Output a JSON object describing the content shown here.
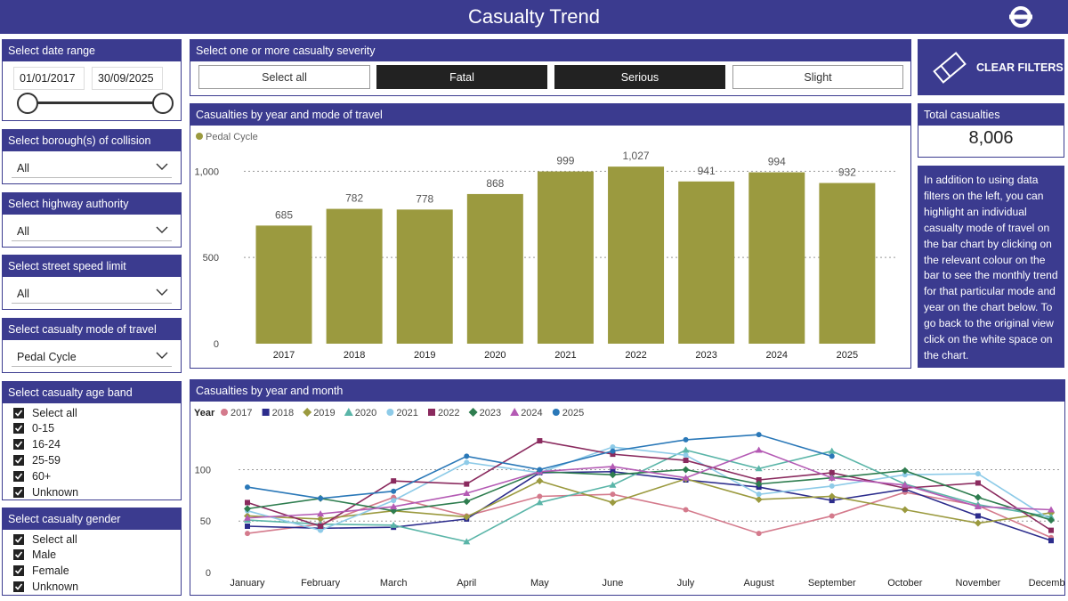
{
  "header": {
    "title": "Casualty Trend",
    "logo": "roundel-icon"
  },
  "filters": {
    "date_range": {
      "label": "Select date range",
      "start": "01/01/2017",
      "end": "30/09/2025"
    },
    "borough": {
      "label": "Select borough(s) of collision",
      "value": "All"
    },
    "highway": {
      "label": "Select highway authority",
      "value": "All"
    },
    "speed": {
      "label": "Select street speed limit",
      "value": "All"
    },
    "mode": {
      "label": "Select casualty mode of travel",
      "value": "Pedal Cycle"
    },
    "age": {
      "label": "Select casualty age band",
      "options": [
        "Select all",
        "0-15",
        "16-24",
        "25-59",
        "60+",
        "Unknown"
      ]
    },
    "gender": {
      "label": "Select casualty gender",
      "options": [
        "Select all",
        "Male",
        "Female",
        "Unknown"
      ]
    }
  },
  "severity": {
    "label": "Select one or more casualty severity",
    "buttons": [
      {
        "label": "Select all",
        "selected": false
      },
      {
        "label": "Fatal",
        "selected": true
      },
      {
        "label": "Serious",
        "selected": true
      },
      {
        "label": "Slight",
        "selected": false
      }
    ]
  },
  "clear_filters": {
    "label": "CLEAR FILTERS"
  },
  "total": {
    "label": "Total casualties",
    "value": "8,006"
  },
  "info_text": "In addition to using data filters on the left, you can highlight an individual casualty mode of travel on the bar chart by clicking on the relevant colour on the bar to see the monthly trend for that particular mode and year on the chart below. To go back to the original view click on the white space on the chart.",
  "colors": {
    "brand": "#3b3b8f",
    "bar": "#9b9a3f"
  },
  "chart_data": [
    {
      "type": "bar",
      "title": "Casualties by year and mode of travel",
      "legend": [
        "Pedal Cycle"
      ],
      "categories": [
        "2017",
        "2018",
        "2019",
        "2020",
        "2021",
        "2022",
        "2023",
        "2024",
        "2025"
      ],
      "values": [
        685,
        782,
        778,
        868,
        999,
        1027,
        941,
        994,
        932
      ],
      "data_labels": [
        "685",
        "782",
        "778",
        "868",
        "999",
        "1,027",
        "941",
        "994",
        "932"
      ],
      "yticks": [
        0,
        500,
        1000
      ],
      "ytick_labels": [
        "0",
        "500",
        "1,000"
      ],
      "ylim": [
        0,
        1100
      ],
      "color": "#9b9a3f"
    },
    {
      "type": "line",
      "title": "Casualties by year and month",
      "legend_title": "Year",
      "categories": [
        "January",
        "February",
        "March",
        "April",
        "May",
        "June",
        "July",
        "August",
        "September",
        "October",
        "November",
        "December"
      ],
      "yticks": [
        0,
        50,
        100
      ],
      "ytick_labels": [
        "0",
        "50",
        "100"
      ],
      "ylim": [
        0,
        135
      ],
      "series": [
        {
          "name": "2017",
          "color": "#d47a8c",
          "marker": "circle",
          "values": [
            38,
            47,
            73,
            55,
            74,
            76,
            61,
            38,
            55,
            78,
            65,
            34
          ]
        },
        {
          "name": "2018",
          "color": "#2c2c8c",
          "marker": "square",
          "values": [
            45,
            43,
            44,
            52,
            97,
            98,
            90,
            83,
            70,
            81,
            55,
            31
          ]
        },
        {
          "name": "2019",
          "color": "#9b9a3f",
          "marker": "diamond",
          "values": [
            55,
            52,
            60,
            54,
            89,
            68,
            91,
            71,
            74,
            61,
            48,
            58
          ]
        },
        {
          "name": "2020",
          "color": "#5ab5a8",
          "marker": "triangle",
          "values": [
            51,
            47,
            46,
            30,
            68,
            85,
            119,
            101,
            118,
            86,
            66,
            54
          ]
        },
        {
          "name": "2021",
          "color": "#8ecbe8",
          "marker": "circle",
          "values": [
            60,
            41,
            70,
            107,
            97,
            122,
            114,
            76,
            84,
            95,
            96,
            51
          ]
        },
        {
          "name": "2022",
          "color": "#8a2a5e",
          "marker": "square",
          "values": [
            68,
            45,
            89,
            86,
            128,
            115,
            109,
            90,
            97,
            82,
            87,
            41
          ]
        },
        {
          "name": "2023",
          "color": "#2e7d4f",
          "marker": "diamond",
          "values": [
            62,
            72,
            60,
            69,
            98,
            95,
            100,
            86,
            92,
            99,
            73,
            51
          ]
        },
        {
          "name": "2024",
          "color": "#b45ab4",
          "marker": "triangle",
          "values": [
            53,
            57,
            64,
            77,
            98,
            103,
            92,
            119,
            92,
            85,
            64,
            61
          ]
        },
        {
          "name": "2025",
          "color": "#2a78b8",
          "marker": "circle",
          "values": [
            83,
            72,
            79,
            113,
            100,
            118,
            129,
            134,
            113,
            null,
            null,
            null
          ]
        }
      ]
    }
  ]
}
